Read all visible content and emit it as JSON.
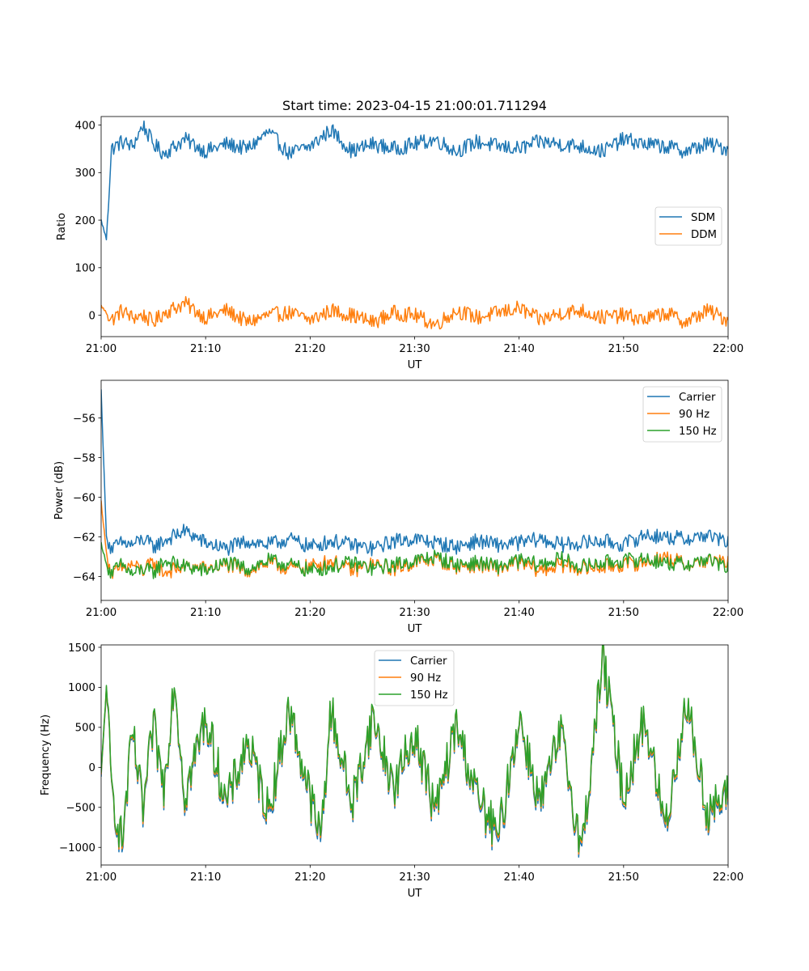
{
  "figure": {
    "title": "Start time: 2023-04-15 21:00:01.711294"
  },
  "chart_data": [
    {
      "type": "line",
      "title": "Start time: 2023-04-15 21:00:01.711294",
      "xlabel": "UT",
      "ylabel": "Ratio",
      "xlim": [
        "21:00",
        "22:00"
      ],
      "xticks": [
        "21:00",
        "21:10",
        "21:20",
        "21:30",
        "21:40",
        "21:50",
        "22:00"
      ],
      "ylim": [
        -45,
        418
      ],
      "yticks": [
        0,
        100,
        200,
        300,
        400
      ],
      "ytick_labels": [
        "0",
        "100",
        "200",
        "300",
        "400"
      ],
      "grid": false,
      "legend_position": "center-right",
      "x": [
        "21:00",
        "21:00:30",
        "21:01",
        "21:02",
        "21:03",
        "21:04",
        "21:05",
        "21:06",
        "21:08",
        "21:10",
        "21:12",
        "21:14",
        "21:16",
        "21:18",
        "21:20",
        "21:22",
        "21:24",
        "21:26",
        "21:28",
        "21:30",
        "21:32",
        "21:34",
        "21:36",
        "21:38",
        "21:40",
        "21:42",
        "21:44",
        "21:46",
        "21:48",
        "21:50",
        "21:52",
        "21:54",
        "21:56",
        "21:58",
        "22:00"
      ],
      "series": [
        {
          "name": "SDM",
          "color": "#1f77b4",
          "values": [
            200,
            160,
            350,
            365,
            355,
            400,
            360,
            340,
            370,
            345,
            360,
            350,
            385,
            340,
            355,
            390,
            345,
            360,
            350,
            360,
            370,
            345,
            365,
            355,
            350,
            365,
            360,
            355,
            345,
            370,
            360,
            355,
            345,
            360,
            350
          ]
        },
        {
          "name": "DDM",
          "color": "#ff7f0e",
          "values": [
            20,
            5,
            -10,
            10,
            -5,
            0,
            -15,
            5,
            25,
            -5,
            10,
            -15,
            0,
            5,
            -10,
            10,
            0,
            -15,
            5,
            0,
            -20,
            10,
            -5,
            5,
            15,
            -10,
            5,
            10,
            -5,
            0,
            -10,
            5,
            -15,
            10,
            -10
          ]
        }
      ]
    },
    {
      "type": "line",
      "xlabel": "UT",
      "ylabel": "Power (dB)",
      "xlim": [
        "21:00",
        "22:00"
      ],
      "xticks": [
        "21:00",
        "21:10",
        "21:20",
        "21:30",
        "21:40",
        "21:50",
        "22:00"
      ],
      "ylim": [
        -65.2,
        -54.1
      ],
      "yticks": [
        -64,
        -62,
        -60,
        -58,
        -56
      ],
      "ytick_labels": [
        "−64",
        "−62",
        "−60",
        "−58",
        "−56"
      ],
      "grid": false,
      "legend_position": "upper-right",
      "x": [
        "21:00",
        "21:00:30",
        "21:01",
        "21:02",
        "21:03",
        "21:04",
        "21:05",
        "21:06",
        "21:08",
        "21:10",
        "21:12",
        "21:14",
        "21:16",
        "21:18",
        "21:20",
        "21:22",
        "21:24",
        "21:26",
        "21:28",
        "21:30",
        "21:32",
        "21:34",
        "21:36",
        "21:38",
        "21:40",
        "21:42",
        "21:44",
        "21:46",
        "21:48",
        "21:50",
        "21:52",
        "21:54",
        "21:56",
        "21:58",
        "22:00"
      ],
      "series": [
        {
          "name": "Carrier",
          "color": "#1f77b4",
          "values": [
            -54.6,
            -62.0,
            -62.6,
            -62.3,
            -62.4,
            -62.1,
            -62.5,
            -62.2,
            -61.7,
            -62.3,
            -62.6,
            -62.2,
            -62.4,
            -62.1,
            -62.5,
            -62.2,
            -62.4,
            -62.6,
            -62.2,
            -62.1,
            -62.3,
            -62.5,
            -62.2,
            -62.4,
            -62.3,
            -62.1,
            -62.4,
            -62.3,
            -62.2,
            -62.4,
            -61.9,
            -62.0,
            -62.1,
            -61.9,
            -62.3
          ]
        },
        {
          "name": "90 Hz",
          "color": "#ff7f0e",
          "values": [
            -60.2,
            -62.8,
            -63.9,
            -63.6,
            -63.4,
            -63.7,
            -63.3,
            -63.8,
            -63.5,
            -63.6,
            -63.4,
            -63.7,
            -63.3,
            -63.6,
            -63.5,
            -63.2,
            -63.7,
            -63.4,
            -63.6,
            -63.3,
            -63.1,
            -63.5,
            -63.4,
            -63.6,
            -63.3,
            -63.7,
            -63.4,
            -63.6,
            -63.5,
            -63.4,
            -63.3,
            -63.0,
            -63.4,
            -63.2,
            -63.3
          ]
        },
        {
          "name": "150 Hz",
          "color": "#2ca02c",
          "values": [
            -62.3,
            -63.4,
            -63.8,
            -63.4,
            -63.9,
            -63.6,
            -63.8,
            -63.2,
            -63.5,
            -63.7,
            -63.3,
            -63.6,
            -63.2,
            -63.4,
            -63.7,
            -63.5,
            -63.3,
            -63.6,
            -63.4,
            -63.2,
            -63.0,
            -63.4,
            -63.3,
            -63.5,
            -63.2,
            -63.4,
            -63.1,
            -63.5,
            -63.3,
            -63.2,
            -63.1,
            -63.3,
            -63.4,
            -63.1,
            -63.6
          ]
        }
      ]
    },
    {
      "type": "line",
      "xlabel": "UT",
      "ylabel": "Frequency (Hz)",
      "xlim": [
        "21:00",
        "22:00"
      ],
      "xticks": [
        "21:00",
        "21:10",
        "21:20",
        "21:30",
        "21:40",
        "21:50",
        "22:00"
      ],
      "ylim": [
        -1220,
        1530
      ],
      "yticks": [
        -1000,
        -500,
        0,
        500,
        1000,
        1500
      ],
      "ytick_labels": [
        "−1000",
        "−500",
        "0",
        "500",
        "1000",
        "1500"
      ],
      "grid": false,
      "legend_position": "upper-center",
      "x": [
        "21:00",
        "21:00:30",
        "21:01",
        "21:02",
        "21:03",
        "21:04",
        "21:05",
        "21:06",
        "21:07",
        "21:08",
        "21:10",
        "21:12",
        "21:14",
        "21:16",
        "21:18",
        "21:20",
        "21:21",
        "21:22",
        "21:24",
        "21:26",
        "21:28",
        "21:30",
        "21:32",
        "21:34",
        "21:36",
        "21:38",
        "21:40",
        "21:42",
        "21:44",
        "21:46",
        "21:48",
        "21:50",
        "21:52",
        "21:54",
        "21:56",
        "21:58",
        "22:00"
      ],
      "series": [
        {
          "name": "Carrier",
          "color": "#1f77b4",
          "values": [
            -150,
            1000,
            -300,
            -1000,
            400,
            -600,
            500,
            -300,
            1100,
            -400,
            600,
            -500,
            300,
            -600,
            700,
            -400,
            -950,
            700,
            -500,
            600,
            -300,
            400,
            -600,
            500,
            -400,
            -950,
            600,
            -500,
            400,
            -1100,
            1350,
            -400,
            600,
            -800,
            800,
            -600,
            -420
          ]
        },
        {
          "name": "90 Hz",
          "color": "#ff7f0e",
          "values": [
            -120,
            1020,
            -280,
            -960,
            420,
            -560,
            520,
            -270,
            1110,
            -360,
            630,
            -470,
            320,
            -560,
            720,
            -370,
            -900,
            720,
            -470,
            620,
            -270,
            420,
            -570,
            520,
            -370,
            -900,
            620,
            -460,
            420,
            -1060,
            1370,
            -370,
            620,
            -760,
            820,
            -570,
            -380
          ]
        },
        {
          "name": "150 Hz",
          "color": "#2ca02c",
          "values": [
            -100,
            1040,
            -260,
            -930,
            440,
            -530,
            540,
            -250,
            1120,
            -330,
            650,
            -450,
            340,
            -530,
            740,
            -350,
            -870,
            740,
            -450,
            640,
            -250,
            440,
            -540,
            540,
            -350,
            -870,
            640,
            -440,
            440,
            -1030,
            1390,
            -350,
            640,
            -730,
            840,
            -540,
            -350
          ]
        }
      ]
    }
  ]
}
